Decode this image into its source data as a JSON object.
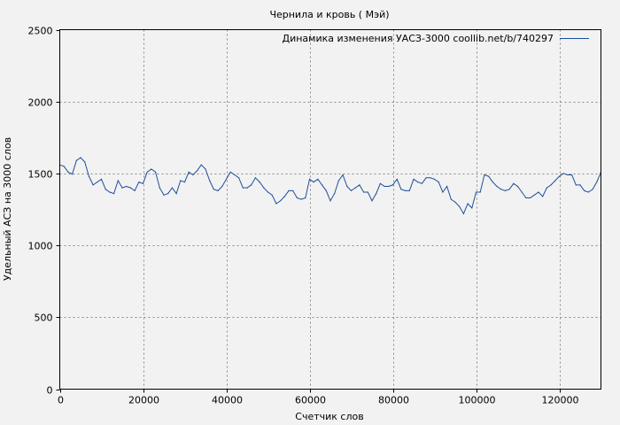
{
  "chart_data": {
    "type": "line",
    "title": "Чернила и кровь ( Мэй)",
    "xlabel": "Счетчик слов",
    "ylabel": "Удельный АСЗ на 3000 слов",
    "xlim": [
      0,
      130000
    ],
    "ylim": [
      0,
      2500
    ],
    "x_ticks": [
      0,
      20000,
      40000,
      60000,
      80000,
      100000,
      120000
    ],
    "x_tick_labels": [
      "0",
      "20000",
      "40000",
      "60000",
      "80000",
      "100000",
      "120000"
    ],
    "y_ticks": [
      0,
      500,
      1000,
      1500,
      2000,
      2500
    ],
    "y_tick_labels": [
      "0",
      "500",
      "1000",
      "1500",
      "2000",
      "2500"
    ],
    "grid": true,
    "legend_position": "top-right",
    "color": "#1f4e9c",
    "series": [
      {
        "name": "Динамика изменения УАСЗ-3000 coollib.net/b/740297",
        "x": [
          0,
          1000,
          2000,
          3000,
          4000,
          5000,
          6000,
          7000,
          8000,
          9000,
          10000,
          11000,
          12000,
          13000,
          14000,
          15000,
          16000,
          17000,
          18000,
          19000,
          20000,
          21000,
          22000,
          23000,
          24000,
          25000,
          26000,
          27000,
          28000,
          29000,
          30000,
          31000,
          32000,
          33000,
          34000,
          35000,
          36000,
          37000,
          38000,
          39000,
          40000,
          41000,
          42000,
          43000,
          44000,
          45000,
          46000,
          47000,
          48000,
          49000,
          50000,
          51000,
          52000,
          53000,
          54000,
          55000,
          56000,
          57000,
          58000,
          59000,
          60000,
          61000,
          62000,
          63000,
          64000,
          65000,
          66000,
          67000,
          68000,
          69000,
          70000,
          71000,
          72000,
          73000,
          74000,
          75000,
          76000,
          77000,
          78000,
          79000,
          80000,
          81000,
          82000,
          83000,
          84000,
          85000,
          86000,
          87000,
          88000,
          89000,
          90000,
          91000,
          92000,
          93000,
          94000,
          95000,
          96000,
          97000,
          98000,
          99000,
          100000,
          101000,
          102000,
          103000,
          104000,
          105000,
          106000,
          107000,
          108000,
          109000,
          110000,
          111000,
          112000,
          113000,
          114000,
          115000,
          116000,
          117000,
          118000,
          119000,
          120000,
          121000,
          122000,
          123000,
          124000,
          125000,
          126000,
          127000,
          128000,
          129000,
          130000
        ],
        "y": [
          1560,
          1550,
          1510,
          1495,
          1590,
          1610,
          1580,
          1480,
          1420,
          1440,
          1460,
          1390,
          1370,
          1360,
          1450,
          1400,
          1410,
          1400,
          1380,
          1440,
          1430,
          1510,
          1530,
          1510,
          1400,
          1350,
          1360,
          1400,
          1360,
          1450,
          1440,
          1510,
          1490,
          1520,
          1560,
          1530,
          1450,
          1390,
          1380,
          1410,
          1460,
          1510,
          1490,
          1470,
          1400,
          1400,
          1420,
          1470,
          1440,
          1400,
          1370,
          1350,
          1290,
          1310,
          1340,
          1380,
          1380,
          1330,
          1320,
          1330,
          1460,
          1440,
          1460,
          1420,
          1380,
          1310,
          1360,
          1450,
          1490,
          1410,
          1380,
          1400,
          1420,
          1370,
          1370,
          1310,
          1360,
          1430,
          1410,
          1410,
          1420,
          1460,
          1390,
          1380,
          1380,
          1460,
          1440,
          1430,
          1470,
          1470,
          1460,
          1440,
          1370,
          1410,
          1320,
          1300,
          1270,
          1220,
          1290,
          1260,
          1370,
          1370,
          1490,
          1480,
          1440,
          1410,
          1390,
          1380,
          1390,
          1430,
          1410,
          1370,
          1330,
          1330,
          1350,
          1370,
          1340,
          1400,
          1420,
          1450,
          1480,
          1500,
          1490,
          1490,
          1420,
          1420,
          1380,
          1370,
          1390,
          1440,
          1510
        ]
      }
    ]
  }
}
